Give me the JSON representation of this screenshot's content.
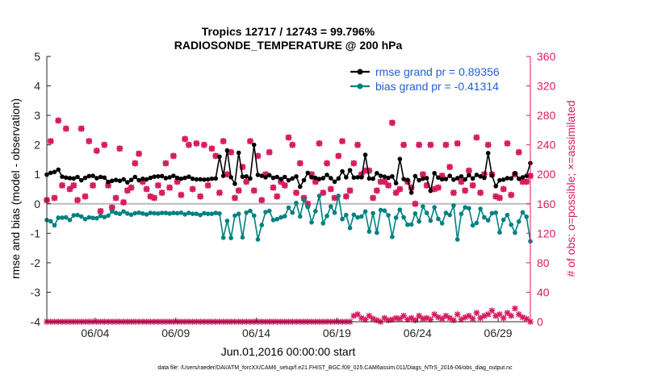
{
  "chart_data": {
    "type": "line",
    "title_line1": "Tropics 12717 / 12743 = 99.796%",
    "title_line2": "RADIOSONDE_TEMPERATURE @ 200 hPa",
    "ylabel_left": "rmse and bias (model - observation)",
    "ylabel_right": "# of obs: o=possible; ×=assimilated",
    "xlabel": "Jun.01,2016 00:00:00 start",
    "footnote": "data file: /Users/raeder/DAI/ATM_forcXX/CAM6_setup/f.e21.FHIST_BGC.f09_025.CAM6assim.011/Diags_NTrS_2016-06/obs_diag_output.nc",
    "ylim_left": [
      -4,
      5
    ],
    "ylim_right": [
      0,
      360
    ],
    "xlim": [
      1,
      31
    ],
    "yticks_left": [
      "-4",
      "-3",
      "-2",
      "-1",
      "0",
      "1",
      "2",
      "3",
      "4",
      "5"
    ],
    "yticks_right": [
      "0",
      "40",
      "80",
      "120",
      "160",
      "200",
      "240",
      "280",
      "320",
      "360"
    ],
    "xticks": [
      {
        "day": 4,
        "label": "06/04"
      },
      {
        "day": 9,
        "label": "06/09"
      },
      {
        "day": 14,
        "label": "06/14"
      },
      {
        "day": 19,
        "label": "06/19"
      },
      {
        "day": 24,
        "label": "06/24"
      },
      {
        "day": 29,
        "label": "06/29"
      }
    ],
    "colors": {
      "rmse": "#000000",
      "bias": "#008080",
      "obs": "#d81b60",
      "zero": "#bbbbbb"
    },
    "series": [
      {
        "name": "rmse grand pr = 0.89356",
        "values": [
          0.99,
          1.05,
          1.08,
          1.16,
          0.92,
          0.89,
          0.87,
          0.86,
          0.91,
          0.8,
          0.88,
          0.94,
          0.95,
          0.87,
          0.91,
          0.89,
          0.74,
          0.78,
          0.81,
          0.78,
          0.83,
          0.73,
          0.81,
          0.91,
          0.8,
          0.85,
          0.83,
          0.88,
          0.92,
          0.93,
          0.94,
          0.87,
          0.9,
          0.95,
          0.88,
          0.85,
          0.88,
          0.92,
          0.85,
          0.83,
          0.83,
          0.82,
          0.83,
          0.85,
          0.86,
          1.6,
          0.95,
          1.81,
          0.9,
          0.68,
          1.73,
          0.92,
          0.93,
          0.86,
          2.0,
          0.98,
          0.95,
          0.9,
          0.97,
          0.88,
          0.91,
          0.84,
          0.91,
          0.8,
          0.86,
          0.93,
          0.58,
          0.8,
          1.05,
          0.9,
          0.88,
          0.84,
          0.87,
          0.98,
          0.87,
          0.75,
          0.86,
          1.1,
          0.9,
          1.14,
          0.89,
          0.9,
          0.9,
          1.66,
          0.86,
          0.85,
          1.04,
          0.95,
          0.92,
          0.88,
          0.93,
          0.7,
          1.52,
          0.84,
          0.81,
          0.38,
          0.94,
          0.8,
          0.85,
          0.87,
          0.44,
          1.04,
          0.89,
          0.83,
          0.84,
          0.95,
          0.82,
          0.87,
          0.93,
          0.83,
          0.97,
          0.86,
          0.98,
          0.93,
          0.88,
          1.72,
          0.96,
          0.6,
          0.8,
          0.82,
          0.87,
          0.86,
          1.04,
          0.85,
          0.9,
          0.95,
          1.38
        ]
      },
      {
        "name": "bias grand pr = -0.41314",
        "values": [
          -0.55,
          -0.59,
          -0.73,
          -0.47,
          -0.47,
          -0.46,
          -0.55,
          -0.39,
          -0.38,
          -0.43,
          -0.52,
          -0.46,
          -0.48,
          -0.49,
          -0.41,
          -0.45,
          -0.4,
          -0.26,
          -0.31,
          -0.34,
          -0.26,
          -0.33,
          -0.37,
          -0.32,
          -0.3,
          -0.33,
          -0.36,
          -0.31,
          -0.32,
          -0.33,
          -0.31,
          -0.31,
          -0.33,
          -0.31,
          -0.32,
          -0.3,
          -0.36,
          -0.31,
          -0.34,
          -0.34,
          -0.38,
          -0.32,
          -0.34,
          -0.34,
          -0.31,
          -0.33,
          -1.15,
          -0.58,
          -1.16,
          -0.4,
          -0.34,
          -1.14,
          -0.3,
          -0.24,
          -0.4,
          -1.21,
          -0.72,
          -0.28,
          -0.24,
          -0.55,
          -0.52,
          -0.46,
          -0.42,
          -0.13,
          -0.3,
          0.03,
          -0.43,
          0.13,
          -0.11,
          -0.63,
          -0.25,
          0.27,
          -0.66,
          -0.41,
          -0.09,
          -0.3,
          0.27,
          -0.52,
          -0.38,
          -0.82,
          -0.37,
          -0.46,
          -0.43,
          -0.26,
          -0.94,
          -0.32,
          -0.98,
          -0.21,
          -0.23,
          -0.39,
          -1.12,
          -0.47,
          -0.2,
          -0.46,
          -0.71,
          -0.7,
          -0.33,
          -0.6,
          -0.09,
          -0.31,
          -0.57,
          -0.12,
          -0.51,
          -0.66,
          -0.31,
          -0.38,
          -0.06,
          -1.21,
          -0.34,
          -0.12,
          -0.15,
          -0.73,
          -0.65,
          -0.17,
          -0.46,
          -0.56,
          -0.32,
          -0.3,
          -0.97,
          -0.54,
          -0.38,
          -0.71,
          -0.98,
          -0.6,
          -0.29,
          -0.44,
          -1.27
        ]
      }
    ],
    "obs_possible": [
      165,
      245,
      168,
      273,
      185,
      262,
      180,
      185,
      165,
      262,
      170,
      245,
      185,
      232,
      150,
      240,
      185,
      155,
      168,
      235,
      162,
      178,
      182,
      215,
      228,
      190,
      180,
      170,
      168,
      185,
      175,
      215,
      182,
      225,
      190,
      172,
      248,
      240,
      180,
      242,
      170,
      240,
      185,
      235,
      225,
      175,
      245,
      200,
      230,
      168,
      178,
      210,
      190,
      245,
      178,
      225,
      165,
      200,
      230,
      182,
      170,
      190,
      185,
      250,
      240,
      175,
      215,
      168,
      160,
      200,
      190,
      242,
      175,
      215,
      180,
      168,
      225,
      245,
      170,
      178,
      215,
      240,
      200,
      205,
      205,
      168,
      178,
      190,
      190,
      185,
      270,
      175,
      180,
      240,
      190,
      182,
      160,
      240,
      200,
      185,
      240,
      180,
      182,
      198,
      240,
      210,
      175,
      242,
      190,
      178,
      205,
      185,
      250,
      175,
      200,
      240,
      200,
      170,
      168,
      180,
      242,
      172,
      200,
      230,
      190,
      190,
      198
    ],
    "obs_assimilated": [
      165,
      245,
      168,
      273,
      185,
      262,
      180,
      185,
      165,
      262,
      170,
      245,
      185,
      232,
      150,
      240,
      185,
      155,
      168,
      235,
      162,
      178,
      182,
      215,
      228,
      190,
      180,
      170,
      168,
      185,
      175,
      215,
      182,
      225,
      190,
      172,
      248,
      240,
      180,
      242,
      170,
      240,
      185,
      235,
      225,
      175,
      245,
      200,
      230,
      168,
      178,
      210,
      190,
      245,
      178,
      225,
      165,
      200,
      230,
      182,
      170,
      190,
      185,
      250,
      240,
      175,
      215,
      168,
      160,
      200,
      190,
      242,
      175,
      215,
      180,
      168,
      225,
      245,
      170,
      178,
      215,
      240,
      200,
      205,
      205,
      168,
      178,
      190,
      190,
      185,
      270,
      175,
      180,
      240,
      190,
      182,
      160,
      240,
      200,
      185,
      240,
      180,
      182,
      198,
      240,
      210,
      175,
      242,
      190,
      178,
      205,
      185,
      250,
      175,
      200,
      240,
      200,
      170,
      168,
      180,
      242,
      172,
      200,
      230,
      190,
      190,
      198
    ],
    "obs_rejected": [
      0,
      0,
      0,
      0,
      0,
      0,
      0,
      0,
      0,
      0,
      0,
      0,
      0,
      0,
      0,
      0,
      0,
      0,
      0,
      0,
      0,
      0,
      0,
      0,
      0,
      0,
      0,
      0,
      0,
      0,
      0,
      0,
      0,
      0,
      0,
      0,
      0,
      0,
      0,
      0,
      0,
      0,
      0,
      0,
      0,
      0,
      0,
      0,
      0,
      0,
      0,
      0,
      0,
      0,
      0,
      0,
      0,
      0,
      0,
      0,
      0,
      0,
      0,
      0,
      0,
      0,
      0,
      0,
      0,
      0,
      0,
      0,
      0,
      0,
      0,
      0,
      0,
      0,
      0,
      0,
      8,
      10,
      5,
      3,
      8,
      4,
      2,
      0,
      5,
      2,
      3,
      5,
      4,
      8,
      3,
      5,
      2,
      8,
      4,
      5,
      3,
      10,
      6,
      4,
      8,
      5,
      2,
      10,
      3,
      6,
      8,
      4,
      12,
      5,
      8,
      10,
      15,
      8,
      10,
      5,
      12,
      8,
      18,
      10,
      6,
      4,
      0
    ]
  }
}
